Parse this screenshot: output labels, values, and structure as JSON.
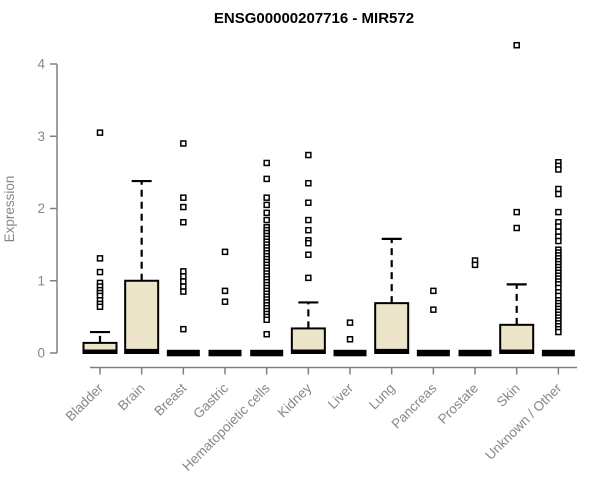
{
  "page": {
    "background": "#ffffff"
  },
  "chart_data": {
    "type": "boxplot",
    "title": "ENSG00000207716 - MIR572",
    "ylabel": "Expression",
    "xlabel": "",
    "ylim": [
      0,
      4
    ],
    "yticks": [
      0,
      1,
      2,
      3,
      4
    ],
    "grid": false,
    "legend": null,
    "categories": [
      "Bladder",
      "Brain",
      "Breast",
      "Gastric",
      "Hematopoietic cells",
      "Kidney",
      "Liver",
      "Lung",
      "Pancreas",
      "Prostate",
      "Skin",
      "Unknown / Other"
    ],
    "series": [
      {
        "name": "Bladder",
        "whisker_low": 0,
        "q1": 0,
        "median": 0.02,
        "q3": 0.14,
        "whisker_high": 0.29,
        "outliers": [
          3.05,
          1.31,
          1.12,
          0.97,
          0.92,
          0.87,
          0.83,
          0.79,
          0.73,
          0.68,
          0.64
        ]
      },
      {
        "name": "Brain",
        "whisker_low": 0,
        "q1": 0,
        "median": 0.03,
        "q3": 1.0,
        "whisker_high": 2.38,
        "outliers": []
      },
      {
        "name": "Breast",
        "whisker_low": 0,
        "q1": 0,
        "median": 0,
        "q3": 0,
        "whisker_high": 0,
        "outliers": [
          2.9,
          2.15,
          2.02,
          1.81,
          1.13,
          1.06,
          0.99,
          0.92,
          0.85,
          0.33
        ]
      },
      {
        "name": "Gastric",
        "whisker_low": 0,
        "q1": 0,
        "median": 0,
        "q3": 0,
        "whisker_high": 0,
        "outliers": [
          1.4,
          0.86,
          0.71
        ]
      },
      {
        "name": "Hematopoietic cells",
        "whisker_low": 0,
        "q1": 0,
        "median": 0,
        "q3": 0,
        "whisker_high": 0,
        "outliers": [
          2.63,
          2.41,
          2.15,
          2.05,
          1.94,
          1.84,
          1.74,
          1.7,
          1.66,
          1.62,
          1.58,
          1.54,
          1.5,
          1.46,
          1.42,
          1.38,
          1.34,
          1.3,
          1.26,
          1.22,
          1.18,
          1.14,
          1.1,
          1.06,
          1.02,
          0.98,
          0.94,
          0.9,
          0.86,
          0.82,
          0.78,
          0.74,
          0.7,
          0.66,
          0.62,
          0.58,
          0.54,
          0.5,
          0.46,
          0.26
        ]
      },
      {
        "name": "Kidney",
        "whisker_low": 0,
        "q1": 0,
        "median": 0.02,
        "q3": 0.34,
        "whisker_high": 0.7,
        "outliers": [
          2.74,
          2.35,
          2.08,
          1.84,
          1.7,
          1.56,
          1.52,
          1.36,
          1.04
        ]
      },
      {
        "name": "Liver",
        "whisker_low": 0,
        "q1": 0,
        "median": 0,
        "q3": 0,
        "whisker_high": 0,
        "outliers": [
          0.42,
          0.19
        ]
      },
      {
        "name": "Lung",
        "whisker_low": 0,
        "q1": 0,
        "median": 0.03,
        "q3": 0.69,
        "whisker_high": 1.58,
        "outliers": []
      },
      {
        "name": "Pancreas",
        "whisker_low": 0,
        "q1": 0,
        "median": 0,
        "q3": 0,
        "whisker_high": 0,
        "outliers": [
          0.86,
          0.6
        ]
      },
      {
        "name": "Prostate",
        "whisker_low": 0,
        "q1": 0,
        "median": 0,
        "q3": 0,
        "whisker_high": 0,
        "outliers": [
          1.28,
          1.22
        ]
      },
      {
        "name": "Skin",
        "whisker_low": 0,
        "q1": 0,
        "median": 0.02,
        "q3": 0.39,
        "whisker_high": 0.95,
        "outliers": [
          4.26,
          1.95,
          1.73
        ]
      },
      {
        "name": "Unknown / Other",
        "whisker_low": 0,
        "q1": 0,
        "median": 0,
        "q3": 0,
        "whisker_high": 0,
        "outliers": [
          2.64,
          2.59,
          2.54,
          2.27,
          2.2,
          1.95,
          1.81,
          1.75,
          1.68,
          1.61,
          1.55,
          1.43,
          1.39,
          1.35,
          1.31,
          1.27,
          1.23,
          1.19,
          1.15,
          1.11,
          1.07,
          1.03,
          0.99,
          0.95,
          0.9,
          0.84,
          0.79,
          0.73,
          0.69,
          0.65,
          0.61,
          0.57,
          0.53,
          0.49,
          0.45,
          0.41,
          0.37,
          0.33,
          0.29
        ]
      }
    ],
    "colors": {
      "box_fill": "#ece5c9",
      "box_stroke": "#000000",
      "median": "#000000",
      "whisker": "#000000",
      "outlier_fill": "#ffffff",
      "outlier_stroke": "#000000",
      "axis": "#808080",
      "tick_label": "#878787",
      "title": "#000000"
    }
  }
}
